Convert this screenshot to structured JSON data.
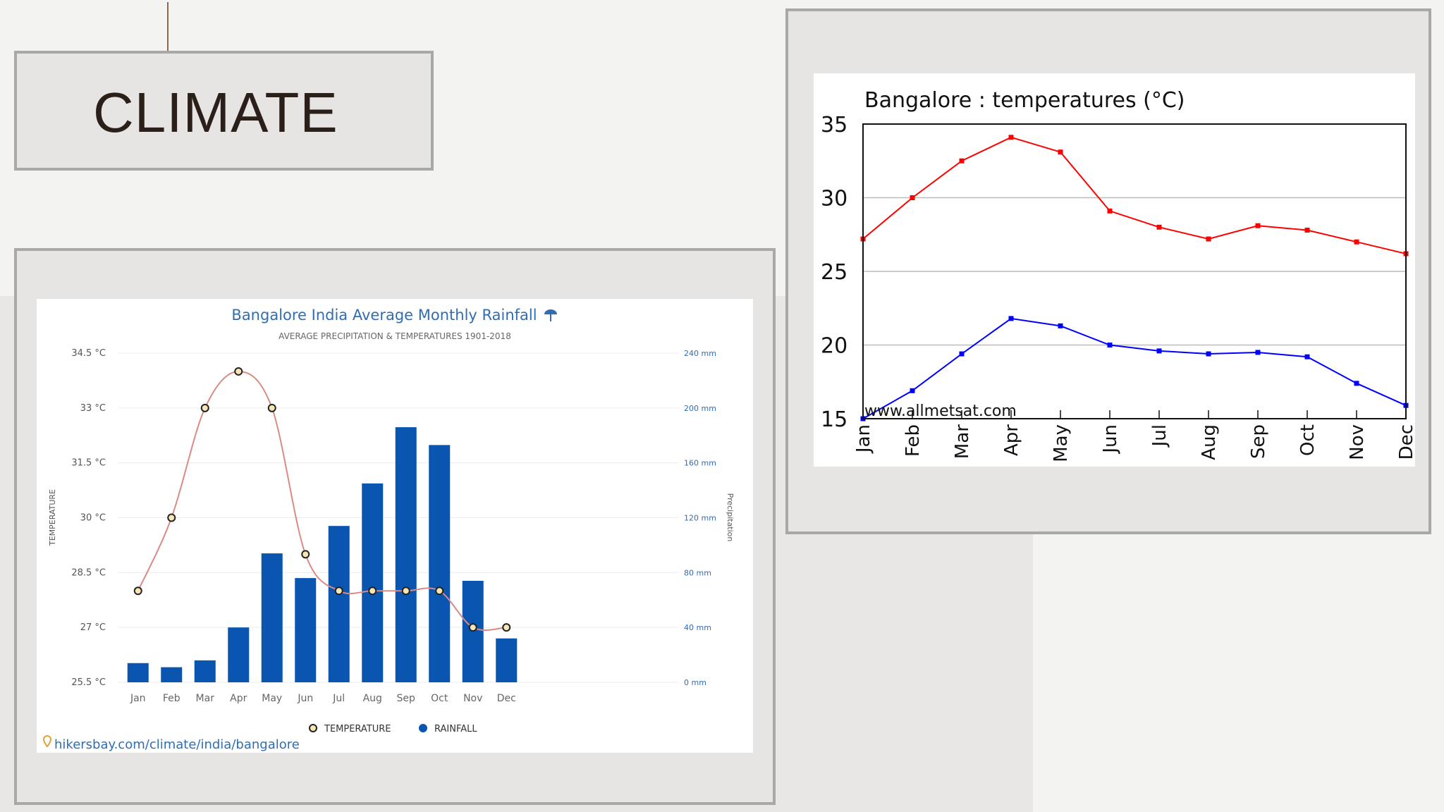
{
  "slide": {
    "title": "CLIMATE"
  },
  "colors": {
    "rainfall_bar": "#0a55b0",
    "temperature_line": "#d98b85",
    "max_temp": "#ff0000",
    "min_temp": "#0000ff",
    "title_blue": "#2f6db5"
  },
  "chart_data": [
    {
      "type": "bar",
      "title": "Bangalore India Average Monthly Rainfall",
      "subtitle": "AVERAGE PRECIPITATION & TEMPERATURES 1901-2018",
      "categories": [
        "Jan",
        "Feb",
        "Mar",
        "Apr",
        "May",
        "Jun",
        "Jul",
        "Aug",
        "Sep",
        "Oct",
        "Nov",
        "Dec"
      ],
      "series": [
        {
          "name": "RAINFALL",
          "kind": "bar",
          "axis": "right",
          "values": [
            14,
            11,
            16,
            40,
            94,
            76,
            114,
            145,
            186,
            173,
            74,
            32
          ]
        },
        {
          "name": "TEMPERATURE",
          "kind": "line",
          "axis": "left",
          "values": [
            28,
            30,
            33,
            34,
            33,
            29,
            28,
            28,
            28,
            28,
            27,
            27
          ]
        }
      ],
      "ylabel": "TEMPERATURE",
      "y2label": "Precipitation",
      "ylim": [
        25.5,
        34.5
      ],
      "y2lim": [
        0,
        240
      ],
      "yticks": [
        "25.5 °C",
        "27 °C",
        "28.5 °C",
        "30 °C",
        "31.5 °C",
        "33 °C",
        "34.5 °C"
      ],
      "y2ticks": [
        "0 mm",
        "40 mm",
        "80 mm",
        "120 mm",
        "160 mm",
        "200 mm",
        "240 mm"
      ],
      "legend": [
        "TEMPERATURE",
        "RAINFALL"
      ],
      "legend_position": "bottom",
      "grid": true,
      "source": "hikersbay.com/climate/india/bangalore"
    },
    {
      "type": "line",
      "title": "Bangalore : temperatures (°C)",
      "categories": [
        "Jan",
        "Feb",
        "Mar",
        "Apr",
        "May",
        "Jun",
        "Jul",
        "Aug",
        "Sep",
        "Oct",
        "Nov",
        "Dec"
      ],
      "series": [
        {
          "color": "#ff0000",
          "values": [
            27.2,
            30.0,
            32.5,
            34.1,
            33.1,
            29.1,
            28.0,
            27.2,
            28.1,
            27.8,
            27.0,
            26.2
          ]
        },
        {
          "color": "#0000ff",
          "values": [
            15.0,
            16.9,
            19.4,
            21.8,
            21.3,
            20.0,
            19.6,
            19.4,
            19.5,
            19.2,
            17.4,
            15.9
          ]
        }
      ],
      "ylim": [
        15,
        35
      ],
      "yticks": [
        "15",
        "20",
        "25",
        "30",
        "35"
      ],
      "grid": true,
      "watermark": "www.allmetsat.com"
    }
  ]
}
